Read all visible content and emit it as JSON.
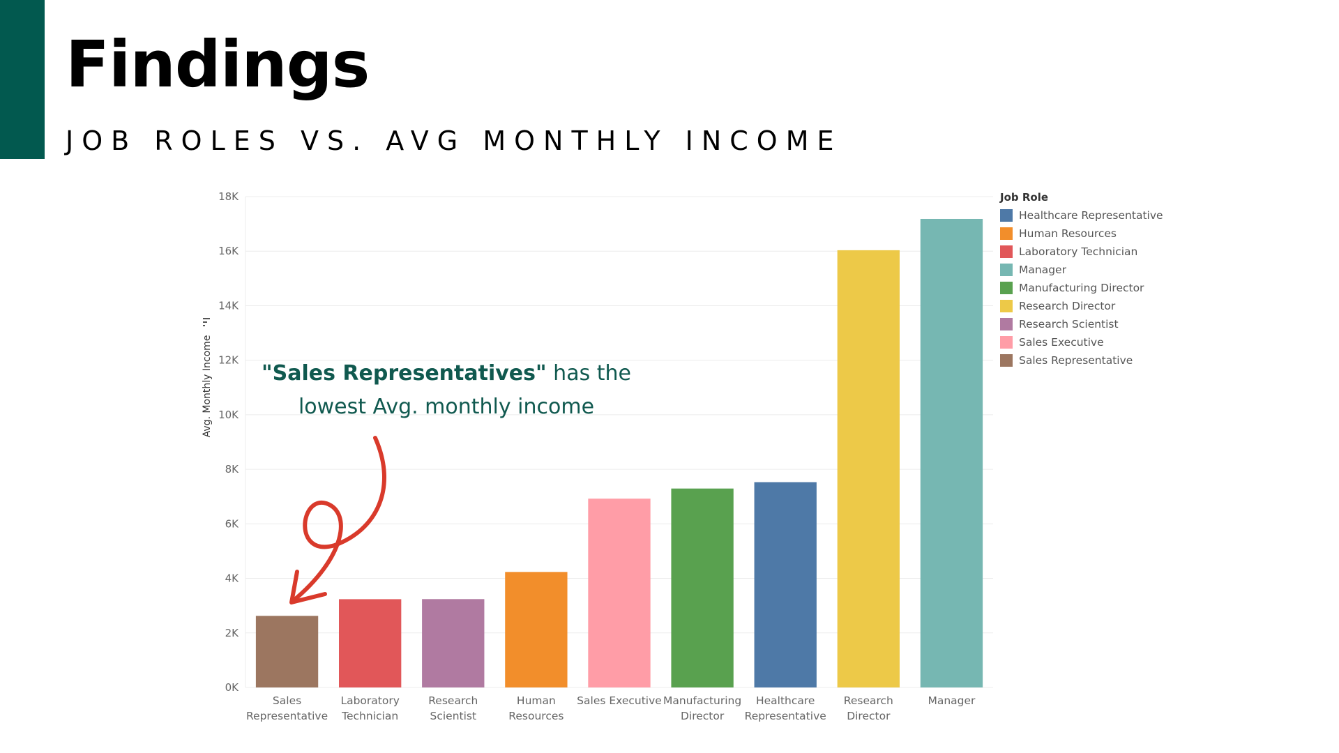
{
  "slide": {
    "title": "Findings",
    "subtitle": "JOB ROLES VS. AVG MONTHLY INCOME",
    "accent_color": "#02594f"
  },
  "callout": {
    "emphasis": "\"Sales Representatives\"",
    "line1_rest": " has the",
    "line2": "lowest Avg. monthly income",
    "color": "#10594f",
    "arrow_color": "#d93a2b"
  },
  "chart_data": {
    "type": "bar",
    "title": "",
    "xlabel": "",
    "ylabel": "Avg. Monthly Income",
    "ylim": [
      0,
      18000
    ],
    "yticks": [
      0,
      2000,
      4000,
      6000,
      8000,
      10000,
      12000,
      14000,
      16000,
      18000
    ],
    "ytick_labels": [
      "0K",
      "2K",
      "4K",
      "6K",
      "8K",
      "10K",
      "12K",
      "14K",
      "16K",
      "18K"
    ],
    "grid": true,
    "legend_position": "right",
    "categories": [
      [
        "Sales",
        "Representative"
      ],
      [
        "Laboratory",
        "Technician"
      ],
      [
        "Research",
        "Scientist"
      ],
      [
        "Human",
        "Resources"
      ],
      [
        "Sales Executive"
      ],
      [
        "Manufacturing",
        "Director"
      ],
      [
        "Healthcare",
        "Representative"
      ],
      [
        "Research",
        "Director"
      ],
      [
        "Manager"
      ]
    ],
    "values": [
      2626,
      3237,
      3240,
      4236,
      6924,
      7295,
      7529,
      16034,
      17182
    ],
    "colors": [
      "#9c7660",
      "#e15759",
      "#b07aa1",
      "#f28e2b",
      "#ff9da7",
      "#59a14f",
      "#4e79a7",
      "#edc948",
      "#76b7b2"
    ]
  },
  "legend": {
    "title": "Job Role",
    "items": [
      {
        "label": "Healthcare Representative",
        "color": "#4e79a7"
      },
      {
        "label": "Human Resources",
        "color": "#f28e2b"
      },
      {
        "label": "Laboratory Technician",
        "color": "#e15759"
      },
      {
        "label": "Manager",
        "color": "#76b7b2"
      },
      {
        "label": "Manufacturing Director",
        "color": "#59a14f"
      },
      {
        "label": "Research Director",
        "color": "#edc948"
      },
      {
        "label": "Research Scientist",
        "color": "#b07aa1"
      },
      {
        "label": "Sales Executive",
        "color": "#ff9da7"
      },
      {
        "label": "Sales Representative",
        "color": "#9c7660"
      }
    ]
  }
}
